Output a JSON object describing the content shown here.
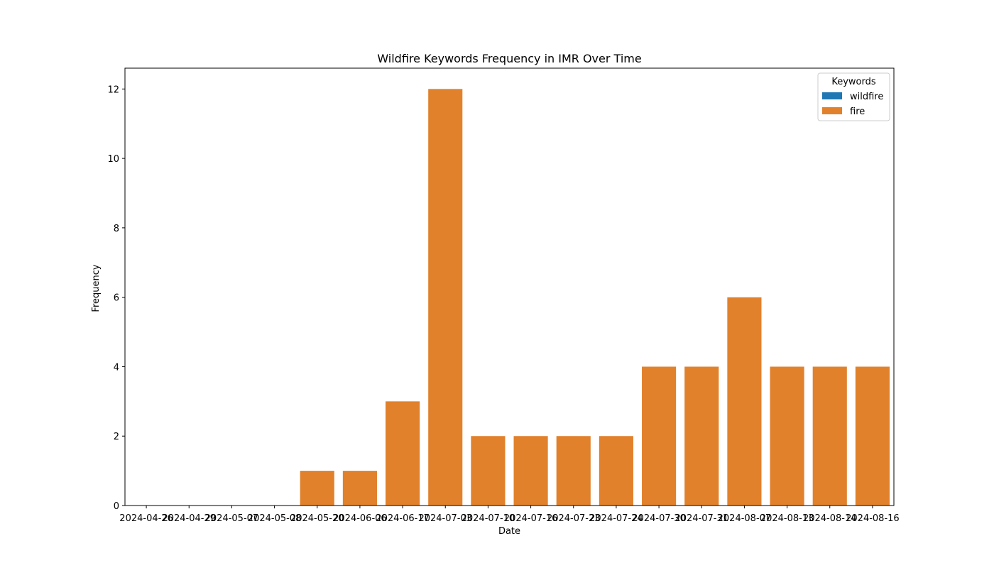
{
  "chart_data": {
    "type": "bar",
    "title": "Wildfire Keywords Frequency in IMR Over Time",
    "xlabel": "Date",
    "ylabel": "Frequency",
    "categories": [
      "2024-04-26",
      "2024-04-29",
      "2024-05-07",
      "2024-05-08",
      "2024-05-20",
      "2024-06-06",
      "2024-06-17",
      "2024-07-03",
      "2024-07-10",
      "2024-07-16",
      "2024-07-23",
      "2024-07-24",
      "2024-07-30",
      "2024-07-31",
      "2024-08-07",
      "2024-08-13",
      "2024-08-14",
      "2024-08-16"
    ],
    "series": [
      {
        "name": "wildfire",
        "color": "#1f77b4",
        "values": [
          0,
          0,
          0,
          0,
          0,
          0,
          0,
          0,
          0,
          0,
          0,
          0,
          0,
          0,
          0,
          0,
          0,
          0
        ]
      },
      {
        "name": "fire",
        "color": "#e1812c",
        "values": [
          0,
          0,
          0,
          0,
          1,
          1,
          3,
          12,
          2,
          2,
          2,
          2,
          4,
          4,
          6,
          4,
          4,
          4
        ]
      }
    ],
    "ylim": [
      0,
      12.6
    ],
    "yticks": [
      0,
      2,
      4,
      6,
      8,
      10,
      12
    ],
    "legend": {
      "title": "Keywords",
      "placement": "top-right"
    },
    "grid": false
  }
}
